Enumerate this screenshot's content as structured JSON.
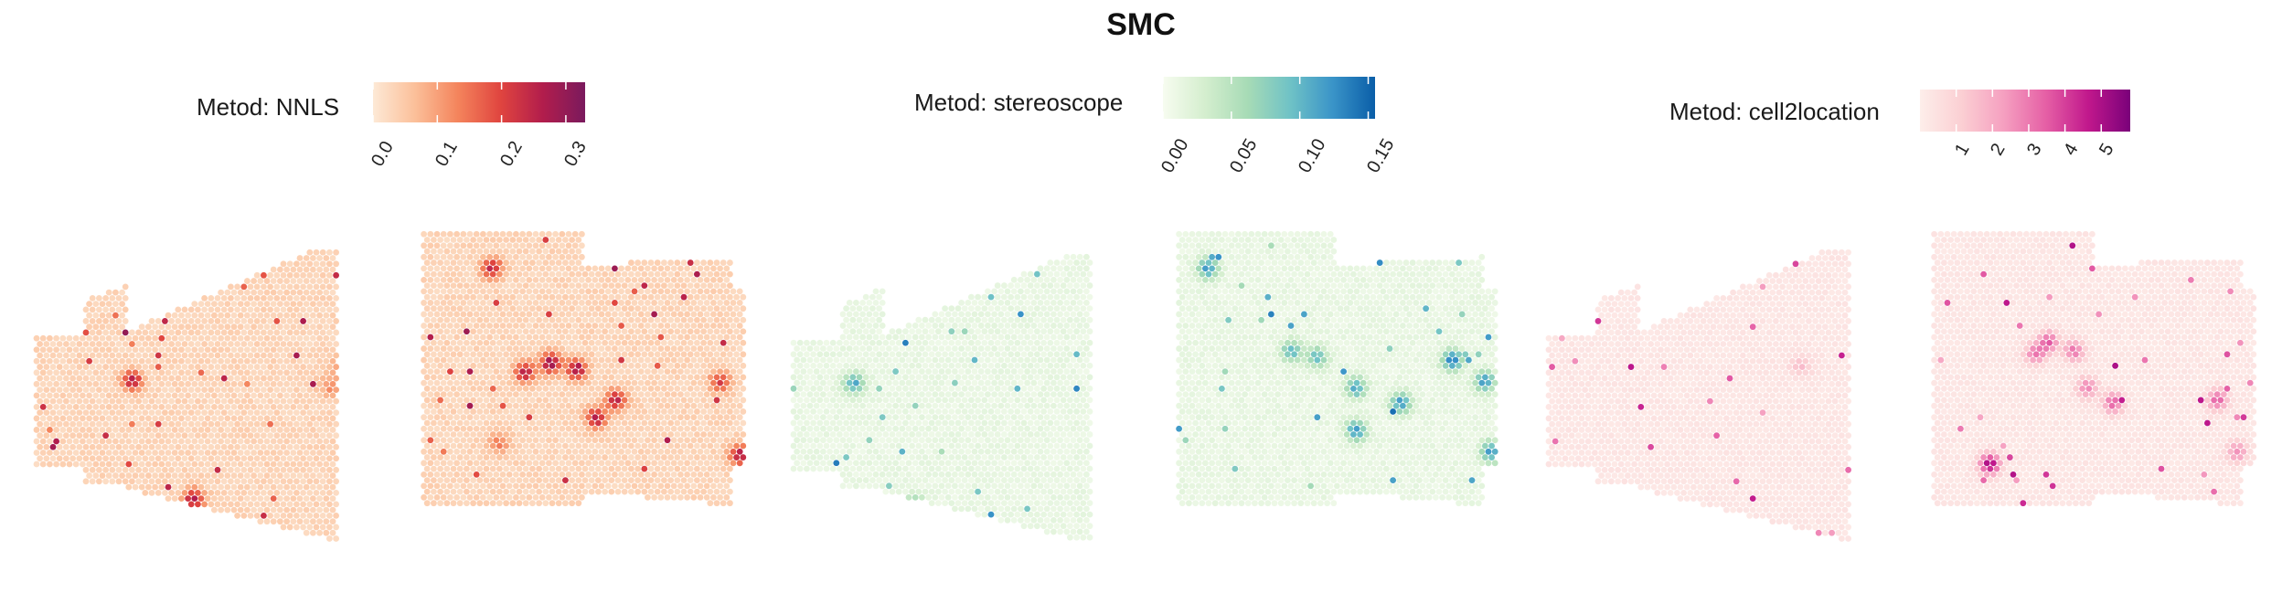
{
  "title": "SMC",
  "chart_data": [
    {
      "type": "heatmap",
      "panel": "left",
      "legend_title": "Metod: NNLS",
      "legend_ticks": [
        "0.0",
        "0.1",
        "0.2",
        "0.3"
      ],
      "legend_tick_values": [
        0.0,
        0.1,
        0.2,
        0.3
      ],
      "value_range": [
        0,
        0.33
      ],
      "colorscale": [
        "#fde9d6",
        "#fbbf99",
        "#f4845c",
        "#e0453f",
        "#b21d4c",
        "#7a1a5d"
      ],
      "background_level": 0.03,
      "hotspots": [
        {
          "x": 0.45,
          "y": 0.4,
          "v": 0.12
        },
        {
          "x": 0.43,
          "y": 0.47,
          "v": 0.1
        },
        {
          "x": 0.7,
          "y": 0.44,
          "v": 0.3
        },
        {
          "x": 0.74,
          "y": 0.46,
          "v": 0.28
        },
        {
          "x": 0.66,
          "y": 0.47,
          "v": 0.26
        },
        {
          "x": 0.8,
          "y": 0.56,
          "v": 0.24
        },
        {
          "x": 0.77,
          "y": 0.62,
          "v": 0.26
        },
        {
          "x": 0.62,
          "y": 0.7,
          "v": 0.12
        },
        {
          "x": 0.23,
          "y": 0.85,
          "v": 0.27
        },
        {
          "x": 0.14,
          "y": 0.45,
          "v": 0.25
        },
        {
          "x": 0.96,
          "y": 0.5,
          "v": 0.2
        },
        {
          "x": 0.61,
          "y": 0.13,
          "v": 0.24
        },
        {
          "x": 0.99,
          "y": 0.74,
          "v": 0.27
        }
      ]
    },
    {
      "type": "heatmap",
      "panel": "middle",
      "legend_title": "Metod: stereoscope",
      "legend_ticks": [
        "0.00",
        "0.05",
        "0.10",
        "0.15"
      ],
      "legend_tick_values": [
        0.0,
        0.05,
        0.1,
        0.15
      ],
      "value_range": [
        0,
        0.155
      ],
      "colorscale": [
        "#f7fcf0",
        "#d4eece",
        "#a7dbb6",
        "#6fc2c6",
        "#3a94c8",
        "#0a5ea8"
      ],
      "background_level": 0.012,
      "hotspots": [
        {
          "x": 0.68,
          "y": 0.4,
          "v": 0.1
        },
        {
          "x": 0.72,
          "y": 0.42,
          "v": 0.09
        },
        {
          "x": 0.78,
          "y": 0.52,
          "v": 0.11
        },
        {
          "x": 0.85,
          "y": 0.57,
          "v": 0.12
        },
        {
          "x": 0.93,
          "y": 0.43,
          "v": 0.14
        },
        {
          "x": 0.98,
          "y": 0.5,
          "v": 0.12
        },
        {
          "x": 0.78,
          "y": 0.66,
          "v": 0.12
        },
        {
          "x": 0.55,
          "y": 0.13,
          "v": 0.12
        },
        {
          "x": 0.09,
          "y": 0.45,
          "v": 0.11
        },
        {
          "x": 0.18,
          "y": 0.87,
          "v": 0.1
        },
        {
          "x": 0.99,
          "y": 0.73,
          "v": 0.12
        }
      ]
    },
    {
      "type": "heatmap",
      "panel": "right",
      "legend_title": "Metod: cell2location",
      "legend_ticks": [
        "1",
        "2",
        "3",
        "4",
        "5"
      ],
      "legend_tick_values": [
        1,
        2,
        3,
        4,
        5
      ],
      "value_range": [
        0,
        5.8
      ],
      "colorscale": [
        "#fdeeea",
        "#fbcfd3",
        "#f59fc0",
        "#e55fa5",
        "#c1188c",
        "#7a017a"
      ],
      "background_level": 0.3,
      "hotspots": [
        {
          "x": 0.68,
          "y": 0.37,
          "v": 3.5
        },
        {
          "x": 0.72,
          "y": 0.4,
          "v": 3.2
        },
        {
          "x": 0.66,
          "y": 0.41,
          "v": 3.0
        },
        {
          "x": 0.78,
          "y": 0.57,
          "v": 3.4
        },
        {
          "x": 0.74,
          "y": 0.52,
          "v": 2.8
        },
        {
          "x": 0.59,
          "y": 0.77,
          "v": 5.5
        },
        {
          "x": 0.94,
          "y": 0.56,
          "v": 3.5
        },
        {
          "x": 0.37,
          "y": 0.4,
          "v": 1.4
        },
        {
          "x": 0.97,
          "y": 0.73,
          "v": 2.5
        }
      ]
    }
  ]
}
